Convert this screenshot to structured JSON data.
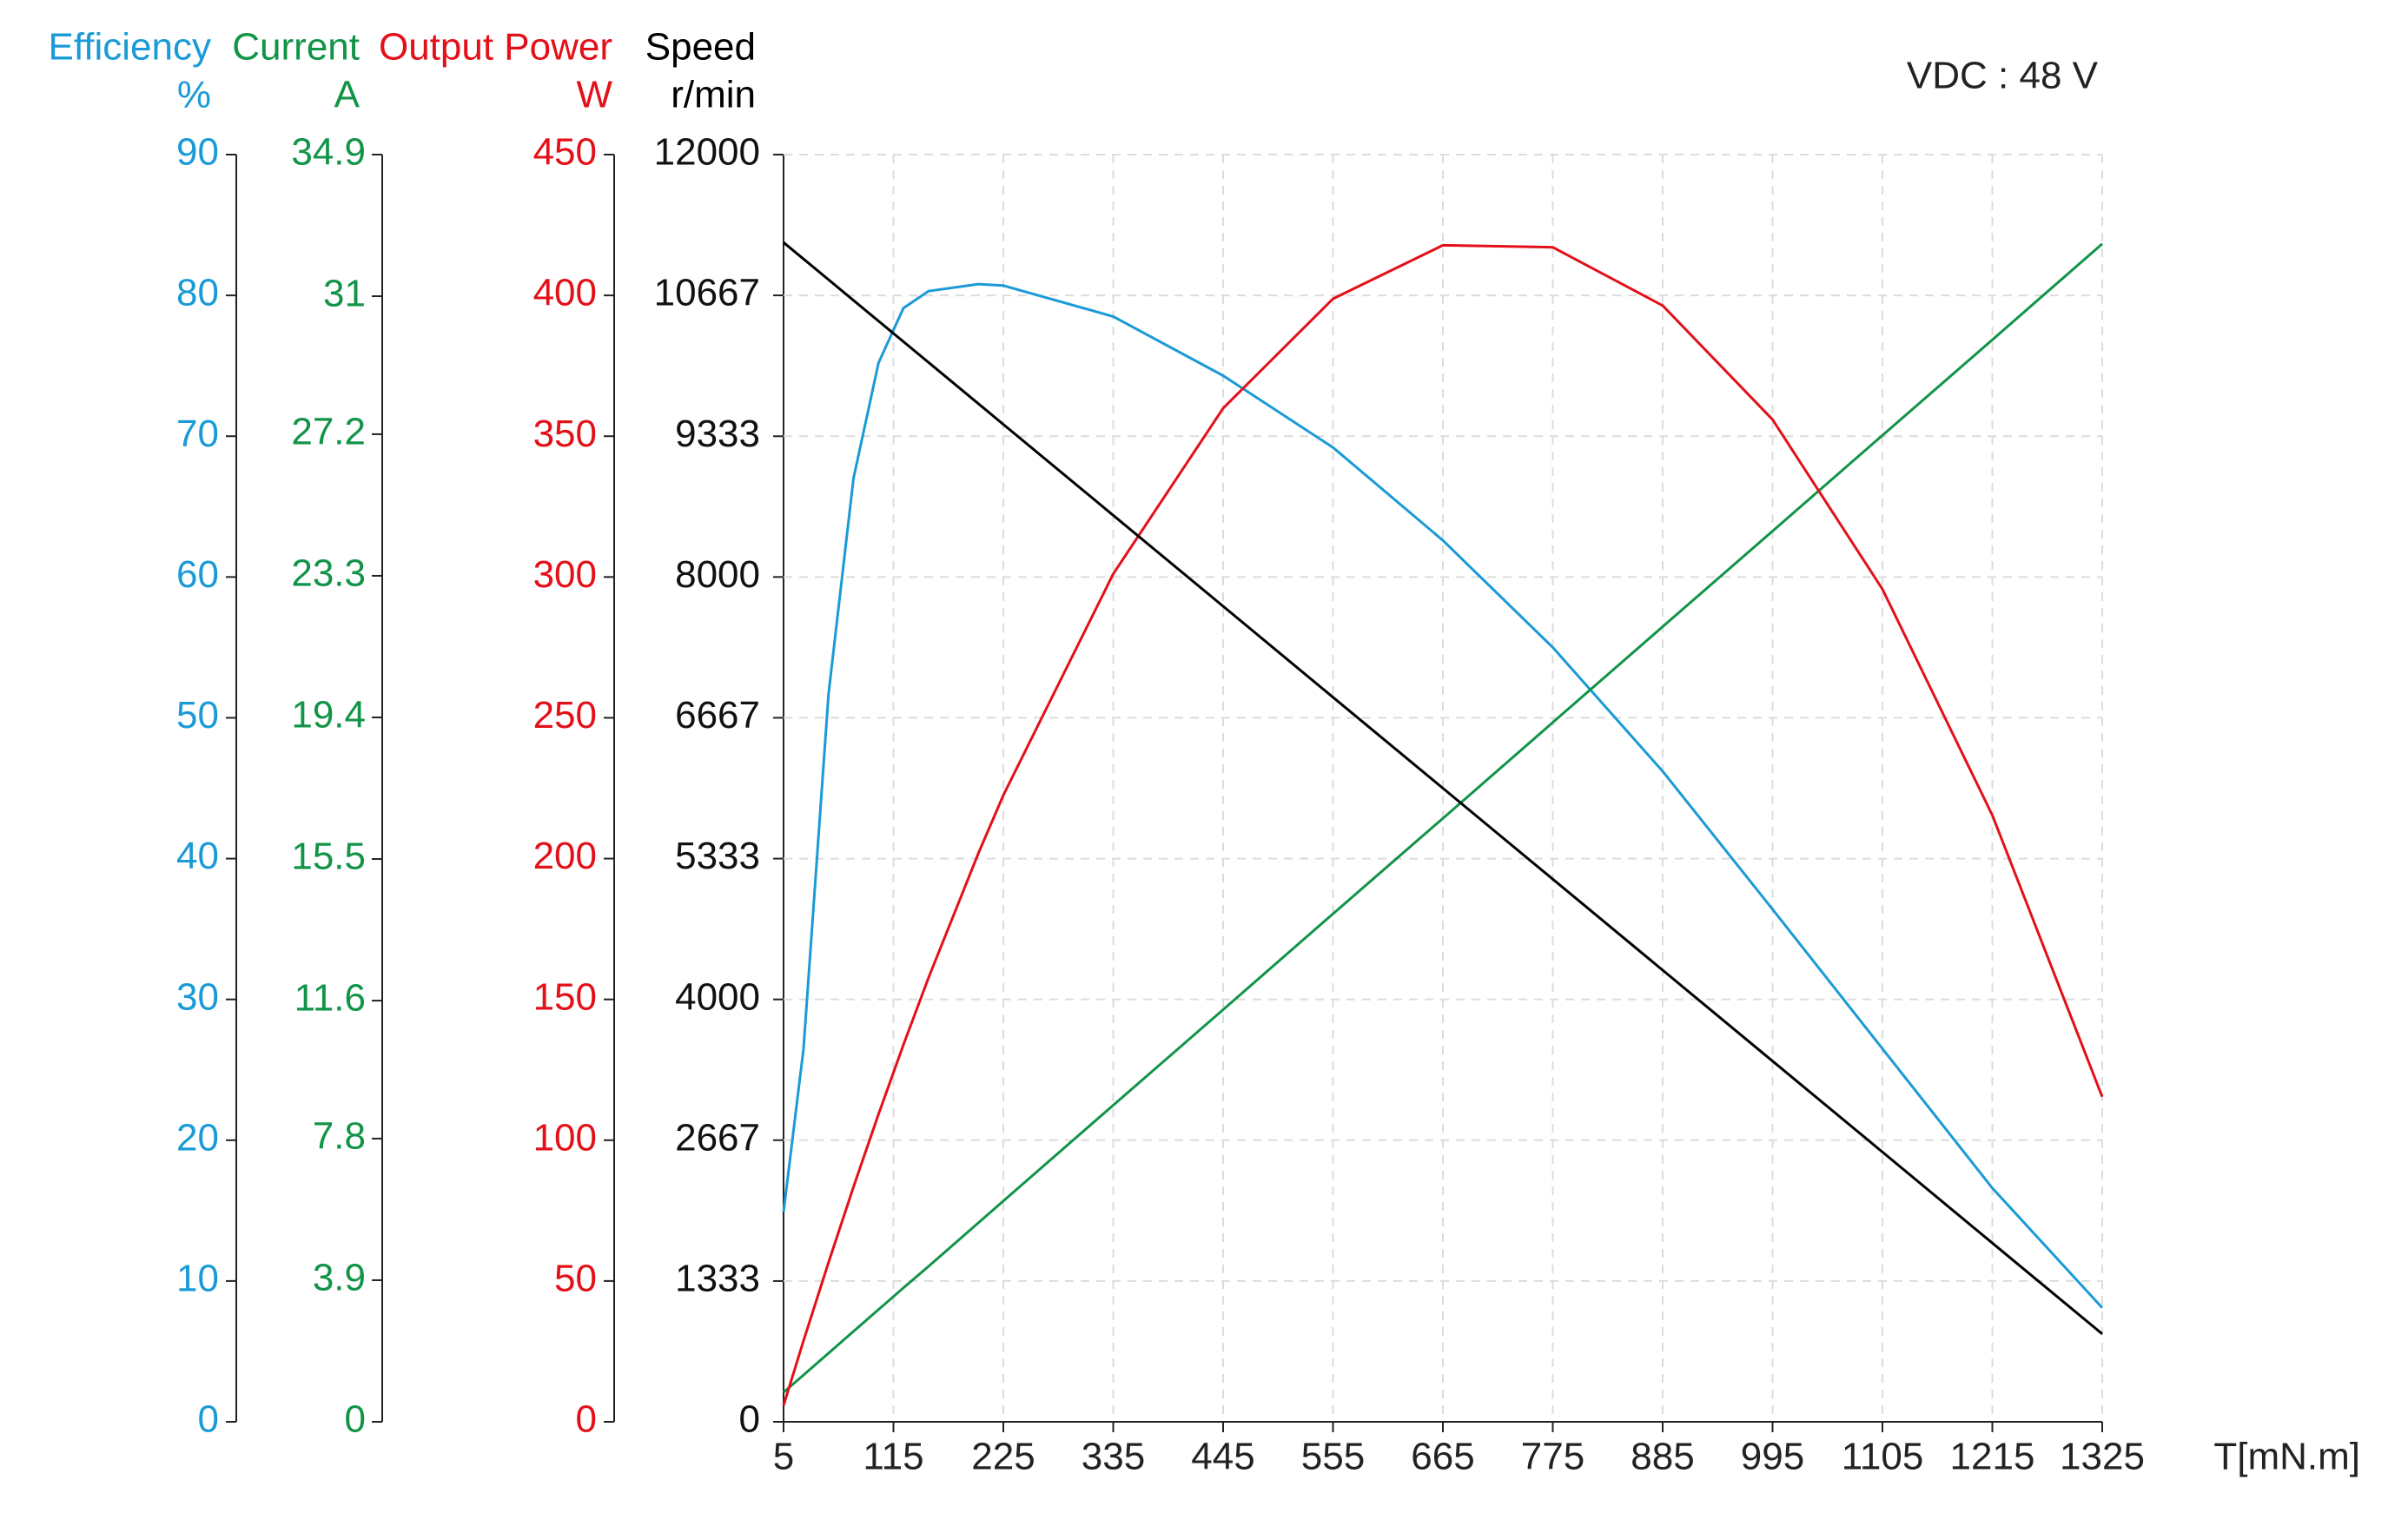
{
  "chart_data": {
    "type": "line",
    "annotation": "VDC : 48 V",
    "xlabel": "T[mN.m]",
    "x": [
      5,
      25,
      50,
      75,
      100,
      125,
      150,
      200,
      225,
      335,
      445,
      555,
      665,
      775,
      885,
      995,
      1105,
      1215,
      1325
    ],
    "xlim": [
      5,
      1325
    ],
    "xticks": [
      5,
      115,
      225,
      335,
      445,
      555,
      665,
      775,
      885,
      995,
      1105,
      1215,
      1325
    ],
    "grid": true,
    "y_axes": [
      {
        "title": "Efficiency",
        "unit": "%",
        "color": "#1a9ad6",
        "ylim": [
          0,
          90
        ],
        "yticks": [
          0,
          10,
          20,
          30,
          40,
          50,
          60,
          70,
          80,
          90
        ],
        "values": [
          14.9,
          26.5,
          51.7,
          67.0,
          75.2,
          79.1,
          80.3,
          80.8,
          80.7,
          78.5,
          74.3,
          69.2,
          62.6,
          55.0,
          46.2,
          36.4,
          26.5,
          16.6,
          8.1
        ]
      },
      {
        "title": "Current",
        "unit": "A",
        "color": "#119447",
        "ylim": [
          0,
          34.9
        ],
        "yticks": [
          0,
          3.9,
          7.8,
          11.6,
          15.5,
          19.4,
          23.3,
          27.2,
          31,
          34.9
        ],
        "values": [
          0.81,
          1.29,
          1.89,
          2.49,
          3.09,
          3.69,
          4.28,
          5.48,
          6.08,
          8.72,
          11.35,
          13.99,
          16.62,
          19.26,
          21.9,
          24.53,
          27.17,
          29.8,
          32.44
        ]
      },
      {
        "title": "Output Power",
        "unit": "W",
        "color": "#e3101a",
        "ylim": [
          0,
          450
        ],
        "yticks": [
          0,
          50,
          100,
          150,
          200,
          250,
          300,
          350,
          400,
          450
        ],
        "values": [
          5.8,
          28.8,
          56.6,
          83.4,
          109.2,
          133.9,
          157.6,
          201.9,
          222.5,
          301.1,
          359.9,
          398.8,
          417.8,
          417.1,
          396.4,
          355.9,
          295.7,
          215.4,
          115.4
        ]
      },
      {
        "title": "Speed",
        "unit": "r/min",
        "color": "#000000",
        "ylim": [
          0,
          12000
        ],
        "yticks": [
          0,
          1333,
          2667,
          4000,
          5333,
          6667,
          8000,
          9333,
          10667,
          12000
        ],
        "values": [
          11168,
          11011,
          10816,
          10620,
          10424,
          10228,
          10033,
          9641,
          9445,
          8584,
          7723,
          6861,
          6000,
          5139,
          4277,
          3416,
          2555,
          1693,
          832
        ]
      }
    ]
  }
}
